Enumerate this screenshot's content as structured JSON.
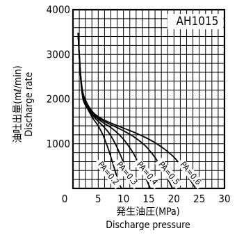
{
  "chart_data": {
    "type": "line",
    "model_label": "AH1015",
    "xlabel_line1": "発生油圧(MPa)",
    "xlabel_line2": "Discharge pressure",
    "ylabel_line1": "油吐出量(mℓ/min)",
    "ylabel_line2": "Discharge rate",
    "xlim": [
      0,
      30
    ],
    "ylim": [
      0,
      4000
    ],
    "x_ticks": [
      0,
      5,
      10,
      15,
      20,
      25,
      30
    ],
    "y_ticks": [
      1000,
      2000,
      3000,
      4000
    ],
    "grid": true,
    "series": [
      {
        "name": "PA=0.2",
        "points": [
          [
            1,
            3480
          ],
          [
            1.5,
            2500
          ],
          [
            2,
            2000
          ],
          [
            3,
            1760
          ],
          [
            4,
            1560
          ],
          [
            5,
            1400
          ],
          [
            6,
            1180
          ],
          [
            7,
            880
          ],
          [
            8,
            520
          ],
          [
            9,
            150
          ],
          [
            9.6,
            0
          ]
        ]
      },
      {
        "name": "PA=0.3",
        "points": [
          [
            1,
            3480
          ],
          [
            1.5,
            2500
          ],
          [
            2,
            2030
          ],
          [
            3,
            1780
          ],
          [
            4,
            1620
          ],
          [
            5,
            1500
          ],
          [
            6,
            1390
          ],
          [
            7,
            1260
          ],
          [
            8,
            1080
          ],
          [
            9,
            850
          ],
          [
            10,
            580
          ],
          [
            11,
            290
          ],
          [
            12,
            0
          ]
        ]
      },
      {
        "name": "PA=0.4",
        "points": [
          [
            1,
            3480
          ],
          [
            1.5,
            2520
          ],
          [
            2,
            2060
          ],
          [
            3,
            1800
          ],
          [
            4,
            1650
          ],
          [
            5,
            1550
          ],
          [
            6,
            1470
          ],
          [
            7,
            1400
          ],
          [
            8,
            1320
          ],
          [
            9,
            1220
          ],
          [
            10,
            1100
          ],
          [
            11,
            950
          ],
          [
            12,
            780
          ],
          [
            13,
            560
          ],
          [
            14,
            330
          ],
          [
            15,
            80
          ],
          [
            15.3,
            0
          ]
        ]
      },
      {
        "name": "PA=0.5",
        "points": [
          [
            1,
            3480
          ],
          [
            1.5,
            2550
          ],
          [
            2,
            2100
          ],
          [
            3,
            1830
          ],
          [
            4,
            1680
          ],
          [
            5,
            1580
          ],
          [
            6,
            1510
          ],
          [
            8,
            1400
          ],
          [
            10,
            1290
          ],
          [
            12,
            1160
          ],
          [
            14,
            990
          ],
          [
            15,
            870
          ],
          [
            16,
            730
          ],
          [
            17,
            560
          ],
          [
            18,
            370
          ],
          [
            19,
            160
          ],
          [
            19.7,
            0
          ]
        ]
      },
      {
        "name": "PA=0.6",
        "points": [
          [
            1,
            3480
          ],
          [
            1.5,
            2580
          ],
          [
            2,
            2130
          ],
          [
            3,
            1860
          ],
          [
            4,
            1700
          ],
          [
            5,
            1610
          ],
          [
            6,
            1540
          ],
          [
            8,
            1440
          ],
          [
            10,
            1350
          ],
          [
            12,
            1260
          ],
          [
            14,
            1160
          ],
          [
            16,
            1040
          ],
          [
            18,
            890
          ],
          [
            20,
            700
          ],
          [
            21,
            560
          ],
          [
            22,
            400
          ],
          [
            23,
            220
          ],
          [
            24,
            50
          ],
          [
            24.3,
            0
          ]
        ]
      }
    ]
  }
}
